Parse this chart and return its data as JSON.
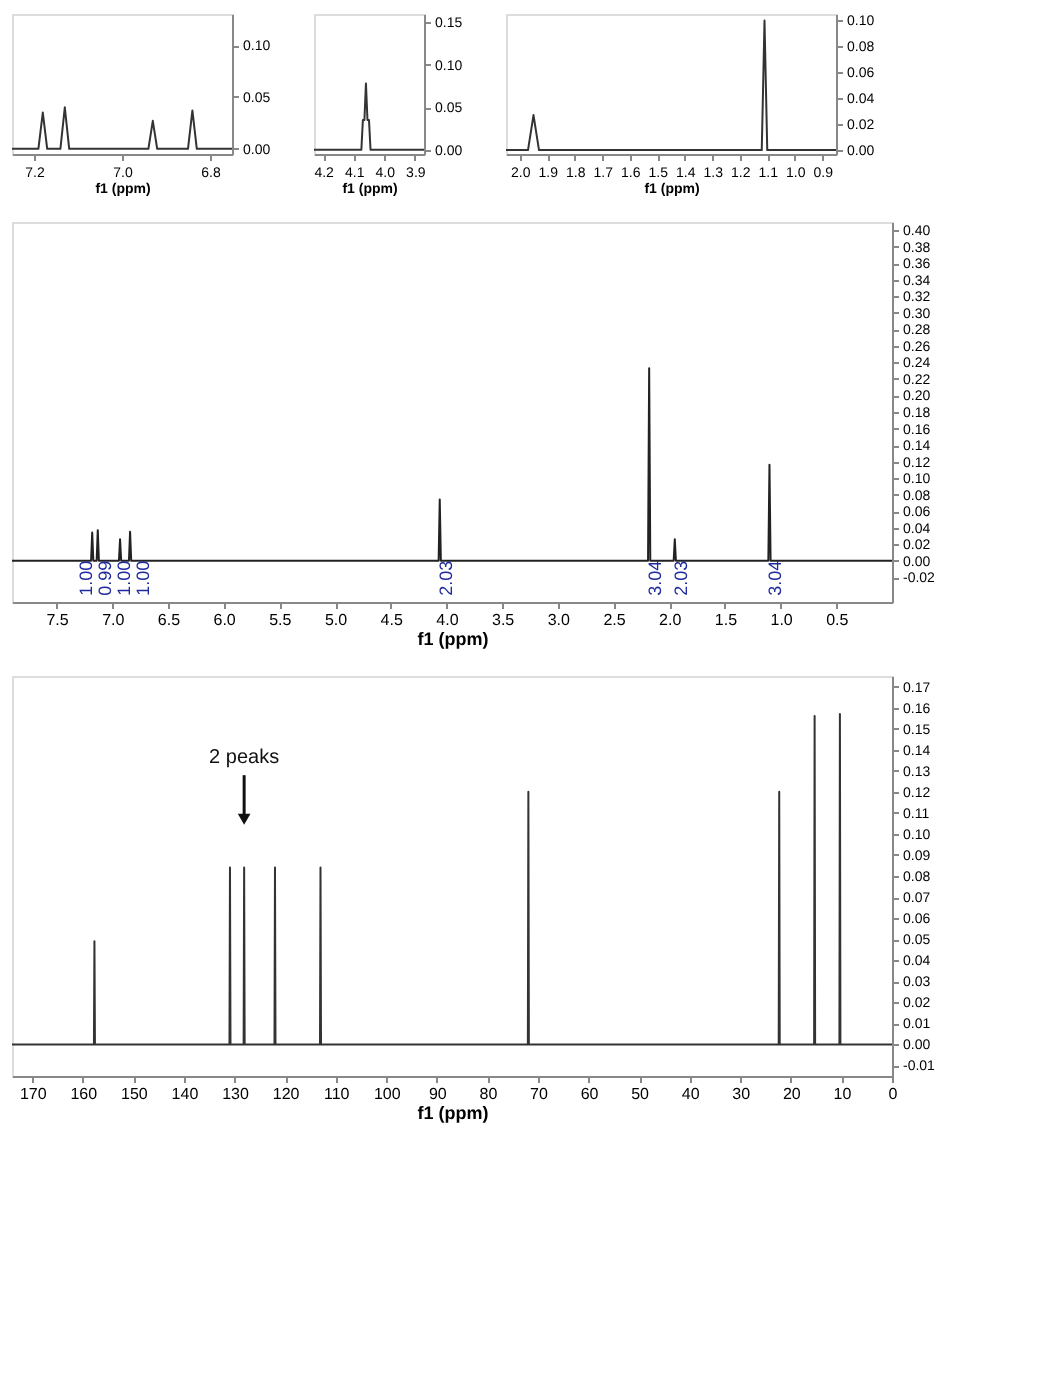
{
  "chart_data": [
    {
      "type": "line",
      "xlabel": "f1 (ppm)",
      "color": "#333333",
      "x": [
        7.25,
        7.19,
        7.18,
        7.17,
        7.14,
        7.13,
        7.12,
        6.94,
        6.93,
        6.92,
        6.85,
        6.84,
        6.83,
        6.75
      ],
      "values": [
        0,
        0,
        0.035,
        0,
        0,
        0.04,
        0,
        0,
        0.027,
        0,
        0,
        0.037,
        0,
        0
      ],
      "xlim": [
        7.25,
        6.75
      ],
      "xticks": [
        {
          "value": 7.2,
          "label": "7.2"
        },
        {
          "value": 7,
          "label": "7.0"
        },
        {
          "value": 6.8,
          "label": "6.8"
        }
      ],
      "ylim": [
        -0.005,
        0.13
      ],
      "yticks": [
        {
          "value": 0,
          "label": "0.00"
        },
        {
          "value": 0.05,
          "label": "0.05"
        },
        {
          "value": 0.1,
          "label": "0.10"
        }
      ],
      "grid": false
    },
    {
      "type": "line",
      "xlabel": "f1 (ppm)",
      "color": "#333333",
      "x": [
        4.23,
        4.075,
        4.07,
        4.065,
        4.06,
        4.055,
        4.05,
        4.045,
        3.87
      ],
      "values": [
        0,
        0,
        0.035,
        0.035,
        0.078,
        0.035,
        0.035,
        0,
        0
      ],
      "xlim": [
        4.23,
        3.87
      ],
      "xticks": [
        {
          "value": 4.2,
          "label": "4.2"
        },
        {
          "value": 4.1,
          "label": "4.1"
        },
        {
          "value": 4,
          "label": "4.0"
        },
        {
          "value": 3.9,
          "label": "3.9"
        }
      ],
      "ylim": [
        -0.005,
        0.16
      ],
      "yticks": [
        {
          "value": 0,
          "label": "0.00"
        },
        {
          "value": 0.05,
          "label": "0.05"
        },
        {
          "value": 0.1,
          "label": "0.10"
        },
        {
          "value": 0.15,
          "label": "0.15"
        }
      ],
      "grid": false
    },
    {
      "type": "line",
      "xlabel": "f1 (ppm)",
      "color": "#333333",
      "x": [
        2.05,
        1.97,
        1.95,
        1.93,
        1.12,
        1.11,
        1.1,
        0.85
      ],
      "values": [
        0,
        0,
        0.027,
        0,
        0,
        0.1,
        0,
        0
      ],
      "xlim": [
        2.05,
        0.85
      ],
      "xticks": [
        {
          "value": 2,
          "label": "2.0"
        },
        1.9,
        1.8,
        1.7,
        1.6,
        1.5,
        1.4,
        1.3,
        1.2,
        1.1,
        {
          "value": 1,
          "label": "1.0"
        },
        0.9
      ],
      "ylim": [
        -0.003,
        0.105
      ],
      "yticks": [
        {
          "value": 0,
          "label": "0.00"
        },
        {
          "value": 0.02,
          "label": "0.02"
        },
        {
          "value": 0.04,
          "label": "0.04"
        },
        {
          "value": 0.06,
          "label": "0.06"
        },
        {
          "value": 0.08,
          "label": "0.08"
        },
        {
          "value": 0.1,
          "label": "0.10"
        }
      ],
      "grid": false
    },
    {
      "type": "line",
      "xlabel": "f1 (ppm)",
      "color": "#222222",
      "x": [
        7.9,
        7.19,
        7.18,
        7.17,
        7.14,
        7.13,
        7.12,
        6.94,
        6.93,
        6.92,
        6.85,
        6.84,
        6.83,
        4.07,
        4.06,
        4.05,
        2.19,
        2.18,
        2.17,
        1.96,
        1.95,
        1.94,
        1.11,
        1.1,
        1.09,
        0
      ],
      "values": [
        0,
        0,
        0.034,
        0,
        0,
        0.037,
        0,
        0,
        0.026,
        0,
        0,
        0.035,
        0,
        0,
        0.074,
        0,
        0,
        0.233,
        0,
        0,
        0.026,
        0,
        0,
        0.116,
        0,
        0
      ],
      "xlim": [
        7.9,
        0
      ],
      "xticks": [
        7.5,
        {
          "value": 7,
          "label": "7.0"
        },
        6.5,
        {
          "value": 6,
          "label": "6.0"
        },
        5.5,
        {
          "value": 5,
          "label": "5.0"
        },
        4.5,
        {
          "value": 4,
          "label": "4.0"
        },
        3.5,
        {
          "value": 3,
          "label": "3.0"
        },
        2.5,
        {
          "value": 2,
          "label": "2.0"
        },
        1.5,
        {
          "value": 1,
          "label": "1.0"
        },
        0.5
      ],
      "ylim": [
        -0.05,
        0.41
      ],
      "yticks": [
        {
          "value": -0.02,
          "label": "-0.02"
        },
        {
          "value": 0,
          "label": "0.00"
        },
        {
          "value": 0.02,
          "label": "0.02"
        },
        {
          "value": 0.04,
          "label": "0.04"
        },
        {
          "value": 0.06,
          "label": "0.06"
        },
        {
          "value": 0.08,
          "label": "0.08"
        },
        {
          "value": 0.1,
          "label": "0.10"
        },
        {
          "value": 0.12,
          "label": "0.12"
        },
        {
          "value": 0.14,
          "label": "0.14"
        },
        {
          "value": 0.16,
          "label": "0.16"
        },
        {
          "value": 0.18,
          "label": "0.18"
        },
        {
          "value": 0.2,
          "label": "0.20"
        },
        {
          "value": 0.22,
          "label": "0.22"
        },
        {
          "value": 0.24,
          "label": "0.24"
        },
        {
          "value": 0.26,
          "label": "0.26"
        },
        {
          "value": 0.28,
          "label": "0.28"
        },
        {
          "value": 0.3,
          "label": "0.30"
        },
        {
          "value": 0.32,
          "label": "0.32"
        },
        {
          "value": 0.34,
          "label": "0.34"
        },
        {
          "value": 0.36,
          "label": "0.36"
        },
        {
          "value": 0.38,
          "label": "0.38"
        },
        {
          "value": 0.4,
          "label": "0.40"
        }
      ],
      "grid": false,
      "annotations": [
        {
          "text": "1.00",
          "x": 7.29,
          "y": 0
        },
        {
          "text": "0.99",
          "x": 7.12,
          "y": 0
        },
        {
          "text": "1.00",
          "x": 6.95,
          "y": 0
        },
        {
          "text": "1.00",
          "x": 6.78,
          "y": 0
        },
        {
          "text": "2.03",
          "x": 4.06,
          "y": 0
        },
        {
          "text": "3.04",
          "x": 2.18,
          "y": 0
        },
        {
          "text": "2.03",
          "x": 1.95,
          "y": 0
        },
        {
          "text": "3.04",
          "x": 1.1,
          "y": 0
        }
      ]
    },
    {
      "type": "line",
      "xlabel": "f1 (ppm)",
      "color": "#333333",
      "x": [
        174,
        157.8,
        157.7,
        157.6,
        131,
        130.9,
        130.8,
        128.2,
        128.1,
        128,
        122.1,
        122,
        121.9,
        113.1,
        113,
        112.9,
        72,
        71.9,
        71.8,
        22.4,
        22.3,
        22.2,
        15.4,
        15.3,
        15.2,
        10.4,
        10.3,
        10.2,
        0
      ],
      "values": [
        0,
        0,
        0.049,
        0,
        0,
        0.084,
        0,
        0,
        0.084,
        0,
        0,
        0.084,
        0,
        0,
        0.084,
        0,
        0,
        0.12,
        0,
        0,
        0.12,
        0,
        0,
        0.156,
        0,
        0,
        0.157,
        0,
        0
      ],
      "xlim": [
        174,
        0
      ],
      "xticks": [
        170,
        160,
        150,
        140,
        130,
        120,
        110,
        100,
        90,
        80,
        70,
        60,
        50,
        40,
        30,
        20,
        10,
        0
      ],
      "ylim": [
        -0.015,
        0.175
      ],
      "yticks": [
        {
          "value": -0.01,
          "label": "-0.01"
        },
        {
          "value": 0,
          "label": "0.00"
        },
        {
          "value": 0.01,
          "label": "0.01"
        },
        {
          "value": 0.02,
          "label": "0.02"
        },
        {
          "value": 0.03,
          "label": "0.03"
        },
        {
          "value": 0.04,
          "label": "0.04"
        },
        {
          "value": 0.05,
          "label": "0.05"
        },
        {
          "value": 0.06,
          "label": "0.06"
        },
        {
          "value": 0.07,
          "label": "0.07"
        },
        {
          "value": 0.08,
          "label": "0.08"
        },
        {
          "value": 0.09,
          "label": "0.09"
        },
        {
          "value": 0.1,
          "label": "0.10"
        },
        {
          "value": 0.11,
          "label": "0.11"
        },
        {
          "value": 0.12,
          "label": "0.12"
        },
        {
          "value": 0.13,
          "label": "0.13"
        },
        {
          "value": 0.14,
          "label": "0.14"
        },
        {
          "value": 0.15,
          "label": "0.15"
        },
        {
          "value": 0.16,
          "label": "0.16"
        },
        {
          "value": 0.17,
          "label": "0.17"
        }
      ],
      "grid": false,
      "annotations": [
        {
          "text": "2 peaks",
          "x": 128.1,
          "y": 0.107
        }
      ]
    }
  ]
}
